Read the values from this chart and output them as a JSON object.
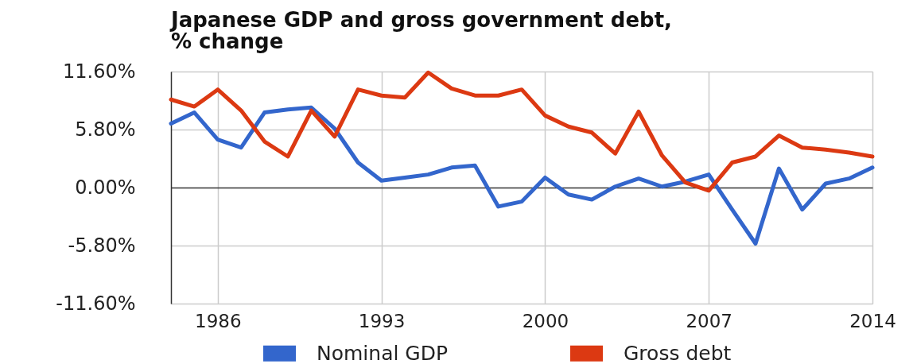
{
  "chart_data": {
    "type": "line",
    "title": "Japanese GDP and gross government debt,\n% change",
    "x": [
      1984,
      1985,
      1986,
      1987,
      1988,
      1989,
      1990,
      1991,
      1992,
      1993,
      1994,
      1995,
      1996,
      1997,
      1998,
      1999,
      2000,
      2001,
      2002,
      2003,
      2004,
      2005,
      2006,
      2007,
      2008,
      2009,
      2010,
      2011,
      2012,
      2013,
      2014
    ],
    "series": [
      {
        "name": "Nominal GDP",
        "color": "#3366cc",
        "values": [
          6.4,
          7.5,
          4.8,
          4.0,
          7.5,
          7.8,
          8.0,
          5.9,
          2.5,
          0.7,
          1.0,
          1.3,
          2.0,
          2.2,
          -1.9,
          -1.4,
          1.0,
          -0.7,
          -1.2,
          0.1,
          0.9,
          0.1,
          0.6,
          1.3,
          -2.2,
          -5.6,
          1.9,
          -2.2,
          0.4,
          0.9,
          2.0
        ]
      },
      {
        "name": "Gross debt",
        "color": "#dc3912",
        "values": [
          8.8,
          8.1,
          9.8,
          7.7,
          4.6,
          3.1,
          7.7,
          5.1,
          9.8,
          9.2,
          9.0,
          11.5,
          9.9,
          9.2,
          9.2,
          9.8,
          7.2,
          6.1,
          5.5,
          3.4,
          7.6,
          3.2,
          0.5,
          -0.3,
          2.5,
          3.1,
          5.2,
          4.0,
          3.8,
          3.5,
          3.1
        ]
      }
    ],
    "xlim": [
      1984,
      2014
    ],
    "xticks": [
      1986,
      1993,
      2000,
      2007,
      2014
    ],
    "ylim": [
      -11.6,
      11.6
    ],
    "yticks": [
      {
        "value": -11.6,
        "label": "-11.60%"
      },
      {
        "value": -5.8,
        "label": "-5.80%"
      },
      {
        "value": 0,
        "label": "0.00%"
      },
      {
        "value": 5.8,
        "label": "5.80%"
      },
      {
        "value": 11.6,
        "label": "11.60%"
      }
    ],
    "grid": true,
    "legend": "bottom",
    "line_style": "solid"
  }
}
